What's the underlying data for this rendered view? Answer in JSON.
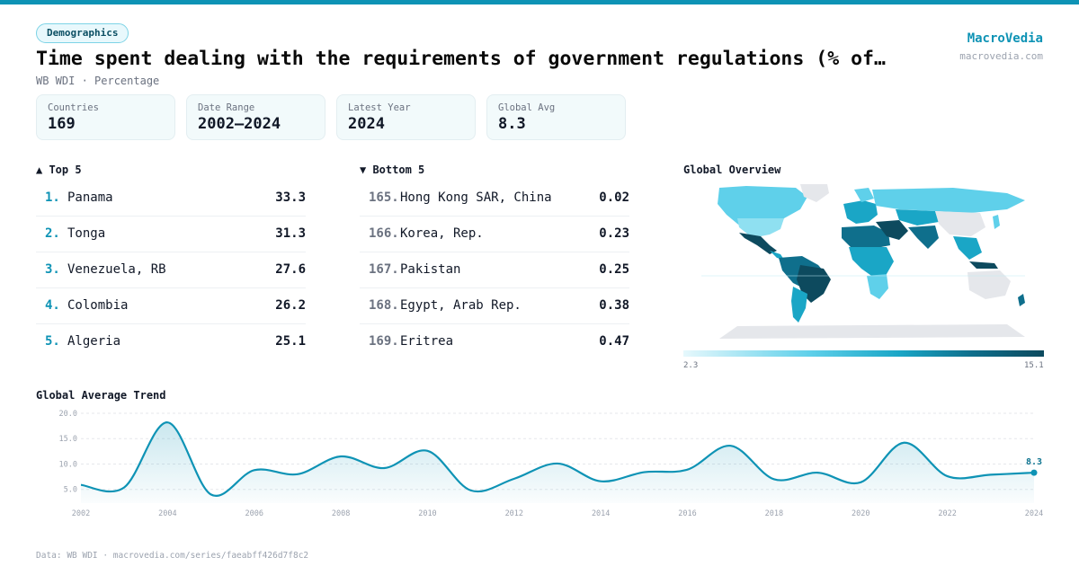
{
  "header": {
    "tag": "Demographics",
    "title": "Time spent dealing with the requirements of government regulations (% of…",
    "subtitle": "WB WDI · Percentage",
    "brand": "MacroVedia",
    "brand_url": "macrovedia.com"
  },
  "stats": [
    {
      "label": "Countries",
      "value": "169"
    },
    {
      "label": "Date Range",
      "value": "2002–2024"
    },
    {
      "label": "Latest Year",
      "value": "2024"
    },
    {
      "label": "Global Avg",
      "value": "8.3"
    }
  ],
  "top5": {
    "title": "▲ Top 5",
    "rows": [
      {
        "rank": "1.",
        "name": "Panama",
        "value": "33.3"
      },
      {
        "rank": "2.",
        "name": "Tonga",
        "value": "31.3"
      },
      {
        "rank": "3.",
        "name": "Venezuela, RB",
        "value": "27.6"
      },
      {
        "rank": "4.",
        "name": "Colombia",
        "value": "26.2"
      },
      {
        "rank": "5.",
        "name": "Algeria",
        "value": "25.1"
      }
    ]
  },
  "bottom5": {
    "title": "▼ Bottom 5",
    "rows": [
      {
        "rank": "165.",
        "name": "Hong Kong SAR, China",
        "value": "0.02"
      },
      {
        "rank": "166.",
        "name": "Korea, Rep.",
        "value": "0.23"
      },
      {
        "rank": "167.",
        "name": "Pakistan",
        "value": "0.25"
      },
      {
        "rank": "168.",
        "name": "Egypt, Arab Rep.",
        "value": "0.38"
      },
      {
        "rank": "169.",
        "name": "Eritrea",
        "value": "0.47"
      }
    ]
  },
  "map": {
    "title": "Global Overview",
    "legend_min": "2.3",
    "legend_max": "15.1",
    "colors": {
      "low": "#e6f8fc",
      "mid": "#1aa6c6",
      "high": "#0d4a5e",
      "nodata": "#e5e7eb"
    }
  },
  "trend": {
    "title": "Global Average Trend",
    "last_label": "8.3"
  },
  "chart_data": {
    "type": "area",
    "title": "Global Average Trend",
    "x": [
      2002,
      2003,
      2004,
      2005,
      2006,
      2007,
      2008,
      2009,
      2010,
      2011,
      2012,
      2013,
      2014,
      2015,
      2016,
      2017,
      2018,
      2019,
      2020,
      2021,
      2022,
      2023,
      2024
    ],
    "series": [
      {
        "values": [
          5.9,
          5.4,
          18.2,
          4.0,
          8.8,
          8.0,
          11.5,
          9.2,
          12.6,
          4.8,
          7.1,
          10.1,
          6.6,
          8.4,
          8.9,
          13.6,
          7.0,
          8.3,
          6.4,
          14.2,
          7.6,
          7.9,
          8.3
        ]
      }
    ],
    "yticks": [
      "20.0",
      "15.0",
      "10.0",
      "5.0"
    ],
    "ylim": [
      2.3,
      20
    ],
    "xticks": [
      "2002",
      "2004",
      "2006",
      "2008",
      "2010",
      "2012",
      "2014",
      "2016",
      "2018",
      "2020",
      "2022",
      "2024"
    ],
    "grid": true,
    "color": "#0e93b5"
  },
  "footer": "Data: WB WDI · macrovedia.com/series/faeabff426d7f8c2"
}
